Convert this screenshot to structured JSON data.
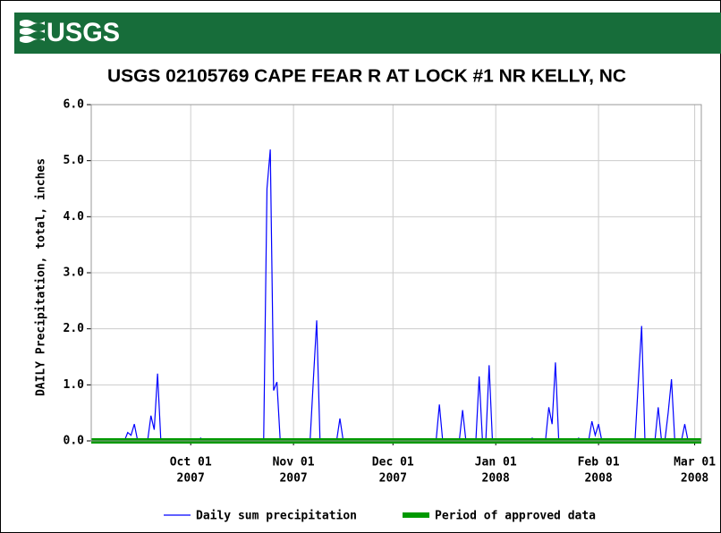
{
  "header": {
    "logo": "USGS"
  },
  "chart_data": {
    "type": "line",
    "title": "USGS 02105769 CAPE FEAR R AT LOCK #1 NR KELLY, NC",
    "y_label": "DAILY Precipitation, total, inches",
    "xlim": [
      "2007-09-01",
      "2008-03-03"
    ],
    "xticks": [
      {
        "value": "2007-10-01",
        "label": [
          "Oct 01",
          "2007"
        ]
      },
      {
        "value": "2007-11-01",
        "label": [
          "Nov 01",
          "2007"
        ]
      },
      {
        "value": "2007-12-01",
        "label": [
          "Dec 01",
          "2007"
        ]
      },
      {
        "value": "2008-01-01",
        "label": [
          "Jan 01",
          "2008"
        ]
      },
      {
        "value": "2008-02-01",
        "label": [
          "Feb 01",
          "2008"
        ]
      },
      {
        "value": "2008-03-01",
        "label": [
          "Mar 01",
          "2008"
        ]
      }
    ],
    "ylim": [
      0,
      6
    ],
    "yticks": [
      {
        "value": 0,
        "label": "0.0"
      },
      {
        "value": 1,
        "label": "1.0"
      },
      {
        "value": 2,
        "label": "2.0"
      },
      {
        "value": 3,
        "label": "3.0"
      },
      {
        "value": 4,
        "label": "4.0"
      },
      {
        "value": 5,
        "label": "5.0"
      },
      {
        "value": 6,
        "label": "6.0"
      }
    ],
    "grid": true,
    "series": [
      {
        "name": "Daily sum precipitation",
        "color": "#0000ff",
        "x": [
          "2007-09-11",
          "2007-09-12",
          "2007-09-13",
          "2007-09-14",
          "2007-09-15",
          "2007-09-18",
          "2007-09-19",
          "2007-09-20",
          "2007-09-21",
          "2007-09-22",
          "2007-10-03",
          "2007-10-04",
          "2007-10-05",
          "2007-10-23",
          "2007-10-24",
          "2007-10-25",
          "2007-10-26",
          "2007-10-27",
          "2007-10-28",
          "2007-11-06",
          "2007-11-07",
          "2007-11-08",
          "2007-11-09",
          "2007-11-14",
          "2007-11-15",
          "2007-11-16",
          "2007-12-14",
          "2007-12-15",
          "2007-12-16",
          "2007-12-21",
          "2007-12-22",
          "2007-12-23",
          "2007-12-26",
          "2007-12-27",
          "2007-12-28",
          "2007-12-29",
          "2007-12-30",
          "2007-12-31",
          "2008-01-11",
          "2008-01-12",
          "2008-01-13",
          "2008-01-16",
          "2008-01-17",
          "2008-01-18",
          "2008-01-19",
          "2008-01-20",
          "2008-01-25",
          "2008-01-26",
          "2008-01-27",
          "2008-01-29",
          "2008-01-30",
          "2008-01-31",
          "2008-02-01",
          "2008-02-02",
          "2008-02-12",
          "2008-02-13",
          "2008-02-14",
          "2008-02-15",
          "2008-02-18",
          "2008-02-19",
          "2008-02-20",
          "2008-02-21",
          "2008-02-22",
          "2008-02-23",
          "2008-02-24",
          "2008-02-26",
          "2008-02-27",
          "2008-02-28"
        ],
        "values": [
          0,
          0.15,
          0.1,
          0.3,
          0,
          0,
          0.45,
          0.2,
          1.2,
          0,
          0,
          0.05,
          0,
          0,
          4.5,
          5.2,
          0.9,
          1.05,
          0,
          0,
          1.1,
          2.15,
          0,
          0,
          0.4,
          0,
          0,
          0.65,
          0,
          0,
          0.55,
          0,
          0,
          1.15,
          0,
          0,
          1.35,
          0,
          0,
          0.05,
          0,
          0,
          0.6,
          0.3,
          1.4,
          0,
          0,
          0.05,
          0,
          0,
          0.35,
          0.1,
          0.3,
          0,
          0,
          1.05,
          2.05,
          0,
          0,
          0.6,
          0,
          0,
          0.5,
          1.1,
          0,
          0,
          0.3,
          0
        ]
      },
      {
        "name": "Period of approved data",
        "color": "#009900",
        "x": [
          "2007-09-01",
          "2008-03-03"
        ],
        "values": [
          0,
          0
        ]
      }
    ]
  }
}
